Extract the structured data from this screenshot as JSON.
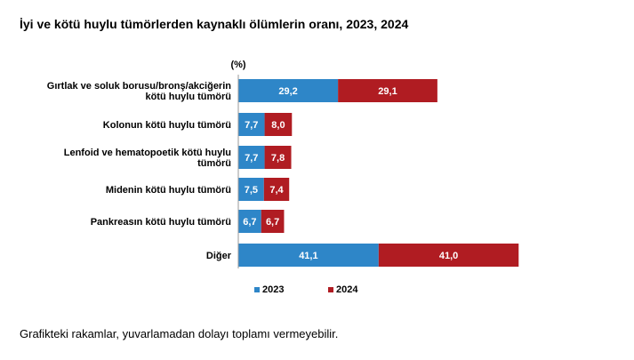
{
  "title": "İyi ve kötü huylu tümörlerden kaynaklı ölümlerin oranı, 2023, 2024",
  "footnote": "Grafikteki rakamlar, yuvarlamadan dolayı toplamı vermeyebilir.",
  "chart_data": {
    "type": "bar",
    "orientation": "horizontal",
    "stacked": true,
    "unit_label": "(%)",
    "categories": [
      [
        "Gırtlak ve soluk borusu/bronş/akciğerin",
        "kötü huylu tümörü"
      ],
      [
        "Kolonun kötü huylu tümörü"
      ],
      [
        "Lenfoid ve hematopoetik kötü huylu",
        "tümörü"
      ],
      [
        "Midenin kötü huylu tümörü"
      ],
      [
        "Pankreasın kötü huylu tümörü"
      ],
      [
        "Diğer"
      ]
    ],
    "series": [
      {
        "name": "2023",
        "color": "#2e86c8",
        "values": [
          29.2,
          7.7,
          7.7,
          7.5,
          6.7,
          41.1
        ],
        "labels": [
          "29,2",
          "7,7",
          "7,7",
          "7,5",
          "6,7",
          "41,1"
        ]
      },
      {
        "name": "2024",
        "color": "#b01c22",
        "values": [
          29.1,
          8.0,
          7.8,
          7.4,
          6.7,
          41.0
        ],
        "labels": [
          "29,1",
          "8,0",
          "7,8",
          "7,4",
          "6,7",
          "41,0"
        ]
      }
    ],
    "grid": false,
    "legend_position": "bottom"
  }
}
